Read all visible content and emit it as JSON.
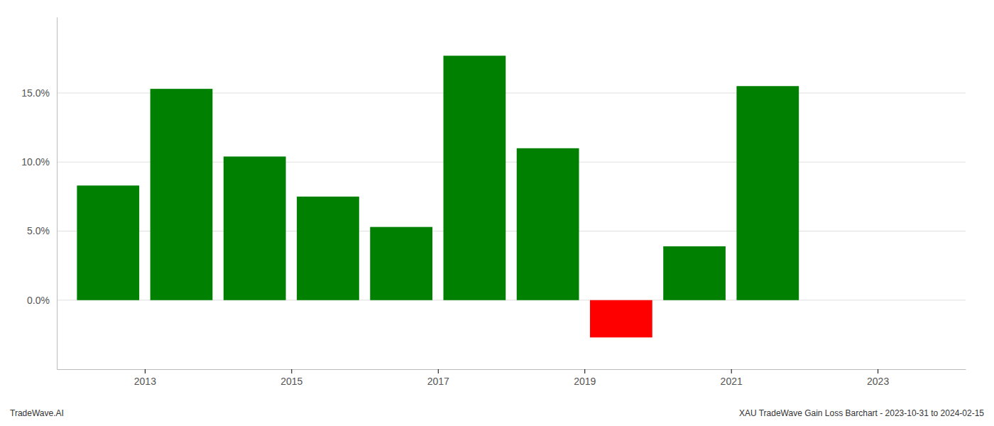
{
  "chart_data": {
    "type": "bar",
    "x": [
      2012.5,
      2013.5,
      2014.5,
      2015.5,
      2016.5,
      2017.5,
      2018.5,
      2019.5,
      2020.5,
      2021.5,
      2022.5
    ],
    "values": [
      0.083,
      0.153,
      0.104,
      0.075,
      0.053,
      0.177,
      0.11,
      -0.027,
      0.039,
      0.155,
      0.0
    ],
    "colors": [
      "#008000",
      "#008000",
      "#008000",
      "#008000",
      "#008000",
      "#008000",
      "#008000",
      "#ff0000",
      "#008000",
      "#008000",
      "#008000"
    ],
    "xlim": [
      2011.8,
      2024.2
    ],
    "xticks": [
      2013,
      2015,
      2017,
      2019,
      2021,
      2023
    ],
    "ylim": [
      -0.05,
      0.205
    ],
    "yticks": [
      {
        "value": 0.0,
        "label": "0.0%"
      },
      {
        "value": 0.05,
        "label": "5.0%"
      },
      {
        "value": 0.1,
        "label": "10.0%"
      },
      {
        "value": 0.15,
        "label": "15.0%"
      }
    ],
    "grid": true,
    "annotations": [
      "TradeWave.AI",
      "XAU TradeWave Gain Loss Barchart - 2023-10-31 to 2024-02-15"
    ]
  }
}
